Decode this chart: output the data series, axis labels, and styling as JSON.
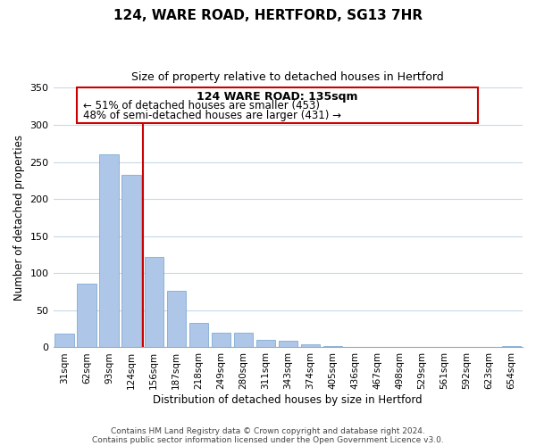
{
  "title": "124, WARE ROAD, HERTFORD, SG13 7HR",
  "subtitle": "Size of property relative to detached houses in Hertford",
  "xlabel": "Distribution of detached houses by size in Hertford",
  "ylabel": "Number of detached properties",
  "categories": [
    "31sqm",
    "62sqm",
    "93sqm",
    "124sqm",
    "156sqm",
    "187sqm",
    "218sqm",
    "249sqm",
    "280sqm",
    "311sqm",
    "343sqm",
    "374sqm",
    "405sqm",
    "436sqm",
    "467sqm",
    "498sqm",
    "529sqm",
    "561sqm",
    "592sqm",
    "623sqm",
    "654sqm"
  ],
  "values": [
    19,
    86,
    260,
    232,
    122,
    76,
    33,
    20,
    20,
    10,
    9,
    4,
    2,
    1,
    1,
    0,
    0,
    0,
    0,
    0,
    2
  ],
  "bar_color": "#aec6e8",
  "bar_edge_color": "#6fa0cc",
  "marker_color": "#cc0000",
  "ylim": [
    0,
    350
  ],
  "yticks": [
    0,
    50,
    100,
    150,
    200,
    250,
    300,
    350
  ],
  "annotation_title": "124 WARE ROAD: 135sqm",
  "annotation_line1": "← 51% of detached houses are smaller (453)",
  "annotation_line2": "48% of semi-detached houses are larger (431) →",
  "footer1": "Contains HM Land Registry data © Crown copyright and database right 2024.",
  "footer2": "Contains public sector information licensed under the Open Government Licence v3.0.",
  "bg_color": "#ffffff",
  "grid_color": "#c8d8e8",
  "box_color": "#cc0000",
  "title_fontsize": 11,
  "subtitle_fontsize": 9,
  "axis_label_fontsize": 8.5,
  "tick_fontsize": 8,
  "footer_fontsize": 6.5
}
